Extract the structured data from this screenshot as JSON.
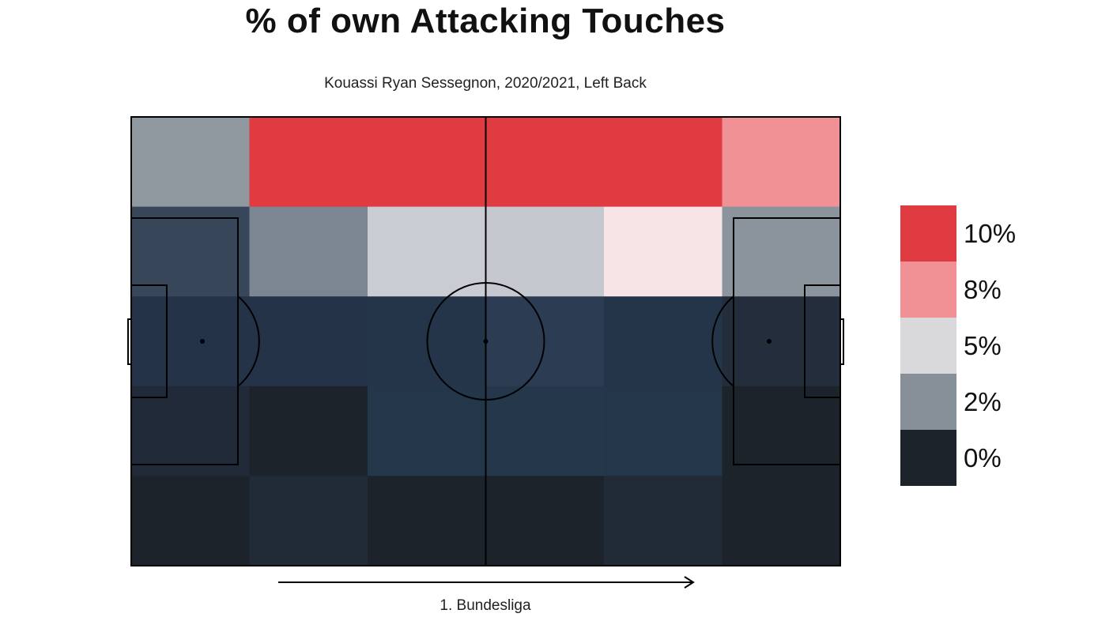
{
  "title": "% of own Attacking Touches",
  "subtitle": "Kouassi Ryan Sessegnon, 2020/2021, Left Back",
  "league_label": "1. Bundesliga",
  "colors": {
    "line": "#000000",
    "scale": [
      "#1d232b",
      "#8a939c",
      "#d8d9dc",
      "#ee8f92",
      "#e03b40"
    ]
  },
  "chart_data": {
    "type": "heatmap",
    "title": "% of own Attacking Touches",
    "subtitle": "Kouassi Ryan Sessegnon, 2020/2021, Left Back",
    "xlabel": "1. Bundesliga",
    "attack_direction": "left-to-right",
    "cols": 6,
    "rows": 5,
    "cells": [
      [
        "#8f979f",
        "#e03b40",
        "#e03b40",
        "#e03b40",
        "#e03b40",
        "#ef9195"
      ],
      [
        "#374659",
        "#7c8692",
        "#c9ccd3",
        "#c5c9cf",
        "#f6e4e7",
        "#8b949d"
      ],
      [
        "#243348",
        "#243348",
        "#24354a",
        "#2c3c52",
        "#243549",
        "#232d3c"
      ],
      [
        "#202a38",
        "#1d232b",
        "#243649",
        "#24374b",
        "#24364a",
        "#1d232b"
      ],
      [
        "#1d232b",
        "#212a37",
        "#1d232b",
        "#1d232b",
        "#212a37",
        "#1d232b"
      ]
    ],
    "legend": {
      "labels": [
        "10%",
        "8%",
        "5%",
        "2%",
        "0%"
      ],
      "colors": [
        "#e03b40",
        "#ef9195",
        "#d9d9dc",
        "#878f99",
        "#1d232b"
      ]
    }
  }
}
